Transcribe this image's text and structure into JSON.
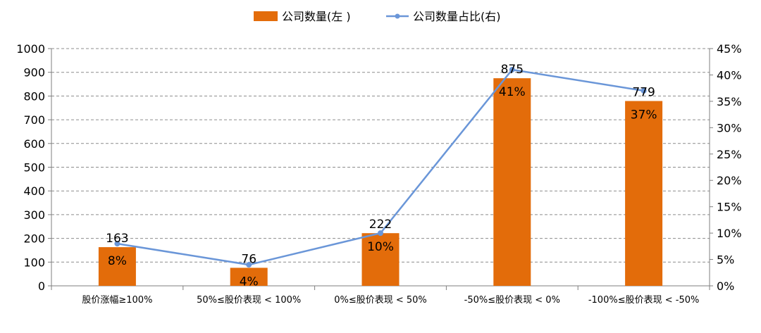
{
  "chart_data": {
    "type": "bar",
    "categories": [
      "股价涨幅≥100%",
      "50%≤股价表现 < 100%",
      "0%≤股价表现 < 50%",
      "-50%≤股价表现 < 0%",
      "-100%≤股价表现 < -50%"
    ],
    "series": [
      {
        "name": "公司数量(左 )",
        "type": "bar",
        "axis": "left",
        "color": "#E36C0A",
        "values": [
          163,
          76,
          222,
          875,
          779
        ],
        "data_labels": [
          "163",
          "76",
          "222",
          "875",
          "779"
        ]
      },
      {
        "name": "公司数量占比(右)",
        "type": "line",
        "axis": "right",
        "color": "#6A96D8",
        "values": [
          0.08,
          0.04,
          0.1,
          0.41,
          0.37
        ],
        "data_labels": [
          "8%",
          "4%",
          "10%",
          "41%",
          "37%"
        ]
      }
    ],
    "y_left": {
      "min": 0,
      "max": 1000,
      "step": 100,
      "ticks": [
        "0",
        "100",
        "200",
        "300",
        "400",
        "500",
        "600",
        "700",
        "800",
        "900",
        "1000"
      ]
    },
    "y_right": {
      "min": 0,
      "max": 0.45,
      "step": 0.05,
      "ticks": [
        "0%",
        "5%",
        "10%",
        "15%",
        "20%",
        "25%",
        "30%",
        "35%",
        "40%",
        "45%"
      ]
    },
    "grid": "horizontal dashed",
    "legend_position": "top"
  }
}
